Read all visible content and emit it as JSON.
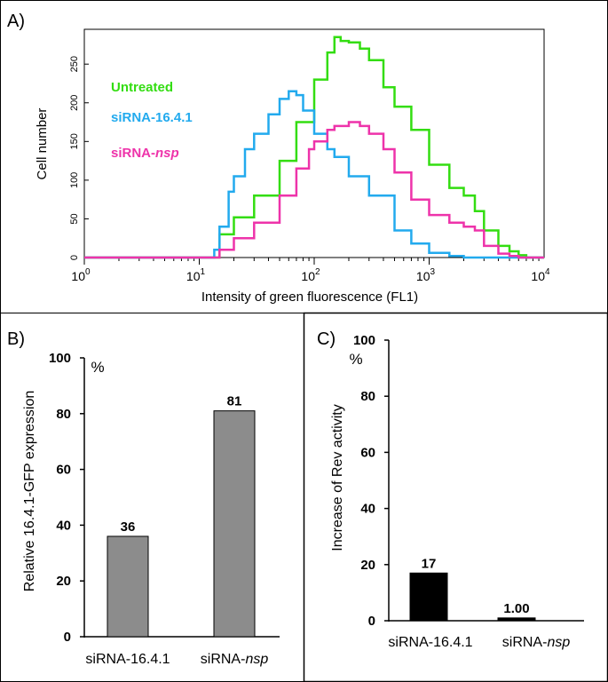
{
  "colors": {
    "untreated": "#33dd11",
    "sirna_1641": "#22aaee",
    "sirna_nsp": "#ee33aa",
    "bar_gray": "#8c8c8c",
    "bar_black": "#000000"
  },
  "chart_data": [
    {
      "panel_label": "A)",
      "type": "line",
      "title": "",
      "xlabel": "Intensity of green fluorescence (FL1)",
      "ylabel": "Cell number",
      "x_scale": "log",
      "xlim": [
        1,
        10000
      ],
      "ylim": [
        0,
        295
      ],
      "x_ticks": [
        {
          "value": 1,
          "base": "10",
          "exp": "0"
        },
        {
          "value": 10,
          "base": "10",
          "exp": "1"
        },
        {
          "value": 100,
          "base": "10",
          "exp": "2"
        },
        {
          "value": 1000,
          "base": "10",
          "exp": "3"
        },
        {
          "value": 10000,
          "base": "10",
          "exp": "4"
        }
      ],
      "y_ticks": [
        "0",
        "50",
        "100",
        "150",
        "200",
        "250"
      ],
      "legend": [
        {
          "label": "Untreated",
          "color_key": "untreated"
        },
        {
          "label": "siRNA-16.4.1",
          "color_key": "sirna_1641"
        },
        {
          "label_prefix": "siRNA-",
          "label_italic": "nsp",
          "color_key": "sirna_nsp"
        }
      ],
      "series": [
        {
          "name": "Untreated",
          "color_key": "untreated",
          "x": [
            1,
            13,
            14,
            15,
            20,
            30,
            50,
            70,
            100,
            130,
            150,
            170,
            200,
            250,
            300,
            400,
            500,
            700,
            1000,
            1500,
            2000,
            2500,
            3000,
            4000,
            5000,
            6000,
            7000,
            10000
          ],
          "y": [
            0,
            0,
            0,
            30,
            52,
            80,
            125,
            175,
            230,
            265,
            285,
            280,
            278,
            270,
            255,
            220,
            195,
            165,
            120,
            90,
            80,
            60,
            35,
            15,
            8,
            3,
            0,
            0
          ]
        },
        {
          "name": "siRNA-16.4.1",
          "color_key": "sirna_1641",
          "x": [
            1,
            13,
            13.5,
            15,
            18,
            20,
            25,
            30,
            40,
            50,
            60,
            70,
            80,
            100,
            130,
            150,
            200,
            300,
            500,
            700,
            1000,
            1500,
            2000,
            3000,
            10000
          ],
          "y": [
            0,
            0,
            10,
            40,
            85,
            105,
            140,
            160,
            185,
            205,
            215,
            210,
            190,
            160,
            140,
            130,
            105,
            80,
            35,
            18,
            6,
            2,
            0,
            0,
            0
          ]
        },
        {
          "name": "siRNA-nsp",
          "color_key": "sirna_nsp",
          "x": [
            1,
            14,
            15,
            20,
            30,
            50,
            70,
            90,
            100,
            130,
            150,
            200,
            250,
            300,
            400,
            500,
            700,
            1000,
            1500,
            2000,
            2500,
            3000,
            4000,
            5000,
            6000,
            10000
          ],
          "y": [
            0,
            0,
            10,
            25,
            45,
            80,
            115,
            140,
            150,
            165,
            170,
            175,
            170,
            160,
            140,
            110,
            75,
            55,
            45,
            40,
            35,
            15,
            5,
            2,
            0,
            0
          ]
        }
      ]
    },
    {
      "panel_label": "B)",
      "type": "bar",
      "ylabel": "Relative 16.4.1-GFP expression",
      "unit": "%",
      "ylim": [
        0,
        100
      ],
      "y_ticks": [
        "0",
        "20",
        "40",
        "60",
        "80",
        "100"
      ],
      "categories": [
        {
          "prefix": "siRNA-16.4.1",
          "italic": ""
        },
        {
          "prefix": "siRNA-",
          "italic": "nsp"
        }
      ],
      "values": [
        36,
        81
      ],
      "value_labels": [
        "36",
        "81"
      ]
    },
    {
      "panel_label": "C)",
      "type": "bar",
      "ylabel": "Increase of Rev activity",
      "unit": "%",
      "ylim": [
        0,
        100
      ],
      "y_ticks": [
        "0",
        "20",
        "40",
        "60",
        "80",
        "100"
      ],
      "categories": [
        {
          "prefix": "siRNA-16.4.1",
          "italic": ""
        },
        {
          "prefix": "siRNA-",
          "italic": "nsp"
        }
      ],
      "values": [
        17,
        1.0
      ],
      "value_labels": [
        "17",
        "1.00"
      ]
    }
  ]
}
